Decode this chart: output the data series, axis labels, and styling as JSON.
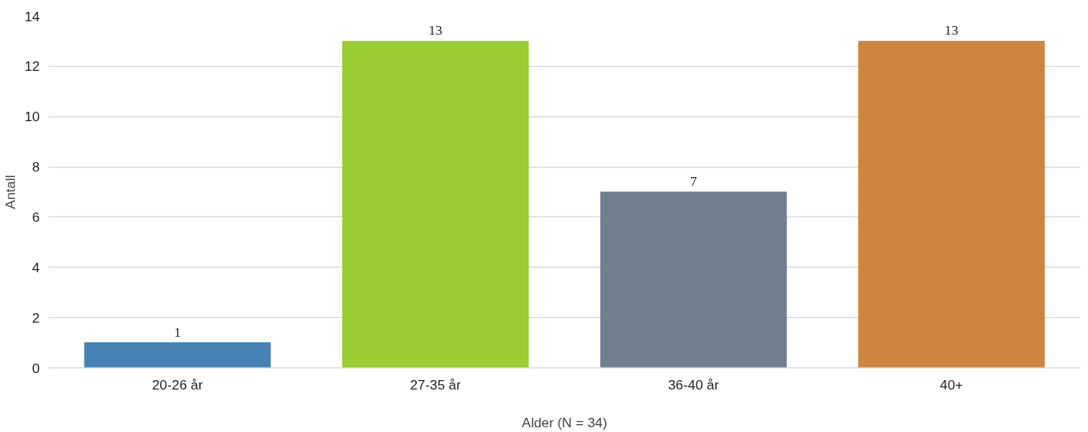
{
  "chart_data": {
    "type": "bar",
    "xlabel": "Alder (N = 34)",
    "ylabel": "Antall",
    "categories": [
      "20-26 år",
      "27-35 år",
      "36-40 år",
      "40+"
    ],
    "values": [
      1,
      13,
      7,
      13
    ],
    "colors": [
      "#4682b4",
      "#9acd32",
      "#708090",
      "#cd853f"
    ],
    "ylim": [
      0,
      14
    ],
    "yticks": [
      0,
      2,
      4,
      6,
      8,
      10,
      12,
      14
    ],
    "grid": "y",
    "data_labels": true
  }
}
